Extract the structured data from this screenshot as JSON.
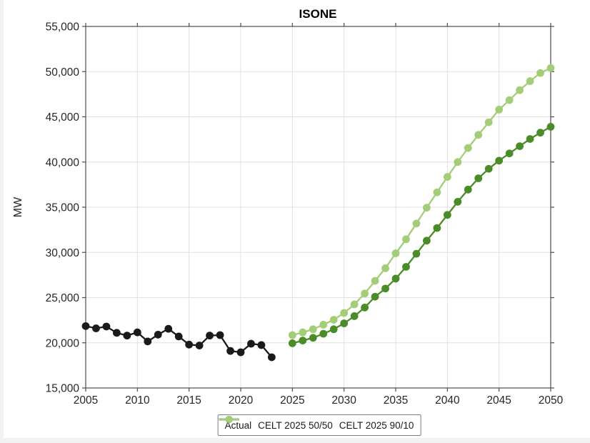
{
  "figure": {
    "page_background": "#f2f2f2",
    "plot_background": "#ffffff",
    "grid_color": "#e0e0e0",
    "axis_color": "#4d4d4d",
    "text_color": "#262626"
  },
  "chart_data": {
    "type": "line",
    "title": "ISONE",
    "xlabel": "",
    "ylabel": "MW",
    "x_range": [
      2005,
      2050
    ],
    "y_range": [
      15000,
      55000
    ],
    "grid": true,
    "legend_position": "bottom-center",
    "x_ticks": [
      2005,
      2010,
      2015,
      2020,
      2025,
      2030,
      2035,
      2040,
      2045,
      2050
    ],
    "x_tick_labels": [
      "2005",
      "2010",
      "2015",
      "2020",
      "2025",
      "2030",
      "2035",
      "2040",
      "2045",
      "2050"
    ],
    "y_ticks": [
      15000,
      20000,
      25000,
      30000,
      35000,
      40000,
      45000,
      50000,
      55000
    ],
    "y_tick_labels": [
      "15,000",
      "20,000",
      "25,000",
      "30,000",
      "35,000",
      "40,000",
      "45,000",
      "50,000",
      "55,000"
    ],
    "series": [
      {
        "name": "Actual",
        "color": "#1a1a1a",
        "marker": "circle",
        "x": [
          2005,
          2006,
          2007,
          2008,
          2009,
          2010,
          2011,
          2012,
          2013,
          2014,
          2015,
          2016,
          2017,
          2018,
          2019,
          2020,
          2021,
          2022,
          2023
        ],
        "values": [
          21850,
          21600,
          21800,
          21100,
          20800,
          21150,
          20150,
          20900,
          21550,
          20700,
          19800,
          19700,
          20800,
          20850,
          19100,
          18950,
          19900,
          19750,
          18400
        ]
      },
      {
        "name": "CELT 2025 50/50",
        "color": "#4a8c28",
        "marker": "circle",
        "x": [
          2025,
          2026,
          2027,
          2028,
          2029,
          2030,
          2031,
          2032,
          2033,
          2034,
          2035,
          2036,
          2037,
          2038,
          2039,
          2040,
          2041,
          2042,
          2043,
          2044,
          2045,
          2046,
          2047,
          2048,
          2049,
          2050
        ],
        "values": [
          19950,
          20250,
          20550,
          21000,
          21500,
          22150,
          22950,
          23900,
          25100,
          26000,
          27100,
          28400,
          29850,
          31300,
          32700,
          34150,
          35600,
          36950,
          38200,
          39250,
          40150,
          40950,
          41750,
          42550,
          43250,
          43900
        ]
      },
      {
        "name": "CELT 2025 90/10",
        "color": "#a3cd76",
        "marker": "circle",
        "x": [
          2025,
          2026,
          2027,
          2028,
          2029,
          2030,
          2031,
          2032,
          2033,
          2034,
          2035,
          2036,
          2037,
          2038,
          2039,
          2040,
          2041,
          2042,
          2043,
          2044,
          2045,
          2046,
          2047,
          2048,
          2049,
          2050
        ],
        "values": [
          20850,
          21150,
          21500,
          22000,
          22550,
          23300,
          24250,
          25450,
          26850,
          28250,
          29900,
          31450,
          33200,
          34950,
          36650,
          38350,
          40000,
          41550,
          43000,
          44400,
          45800,
          46850,
          47950,
          48950,
          49850,
          50400
        ]
      }
    ]
  }
}
